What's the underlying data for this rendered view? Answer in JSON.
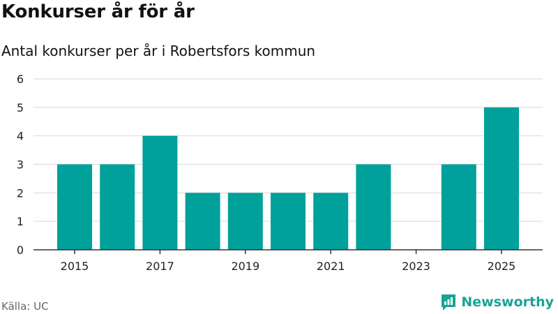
{
  "title": "Konkurser år för år",
  "subtitle": "Antal konkurser per år i Robertsfors kommun",
  "source": "Källa: UC",
  "brand": {
    "name": "Newsworthy",
    "logo_icon": "newsworthy-logo-icon",
    "color": "#1aa393"
  },
  "chart_data": {
    "type": "bar",
    "title": "Konkurser år för år",
    "subtitle": "Antal konkurser per år i Robertsfors kommun",
    "xlabel": "",
    "ylabel": "",
    "categories": [
      "2015",
      "2016",
      "2017",
      "2018",
      "2019",
      "2020",
      "2021",
      "2022",
      "2023",
      "2024",
      "2025"
    ],
    "values": [
      3,
      3,
      4,
      2,
      2,
      2,
      2,
      3,
      0,
      3,
      5
    ],
    "ylim": [
      0,
      6
    ],
    "yticks": [
      "0",
      "1",
      "2",
      "3",
      "4",
      "5",
      "6"
    ],
    "xticks": [
      "2015",
      "2017",
      "2019",
      "2021",
      "2023",
      "2025"
    ],
    "grid": true,
    "bar_color": "#00a19a"
  }
}
